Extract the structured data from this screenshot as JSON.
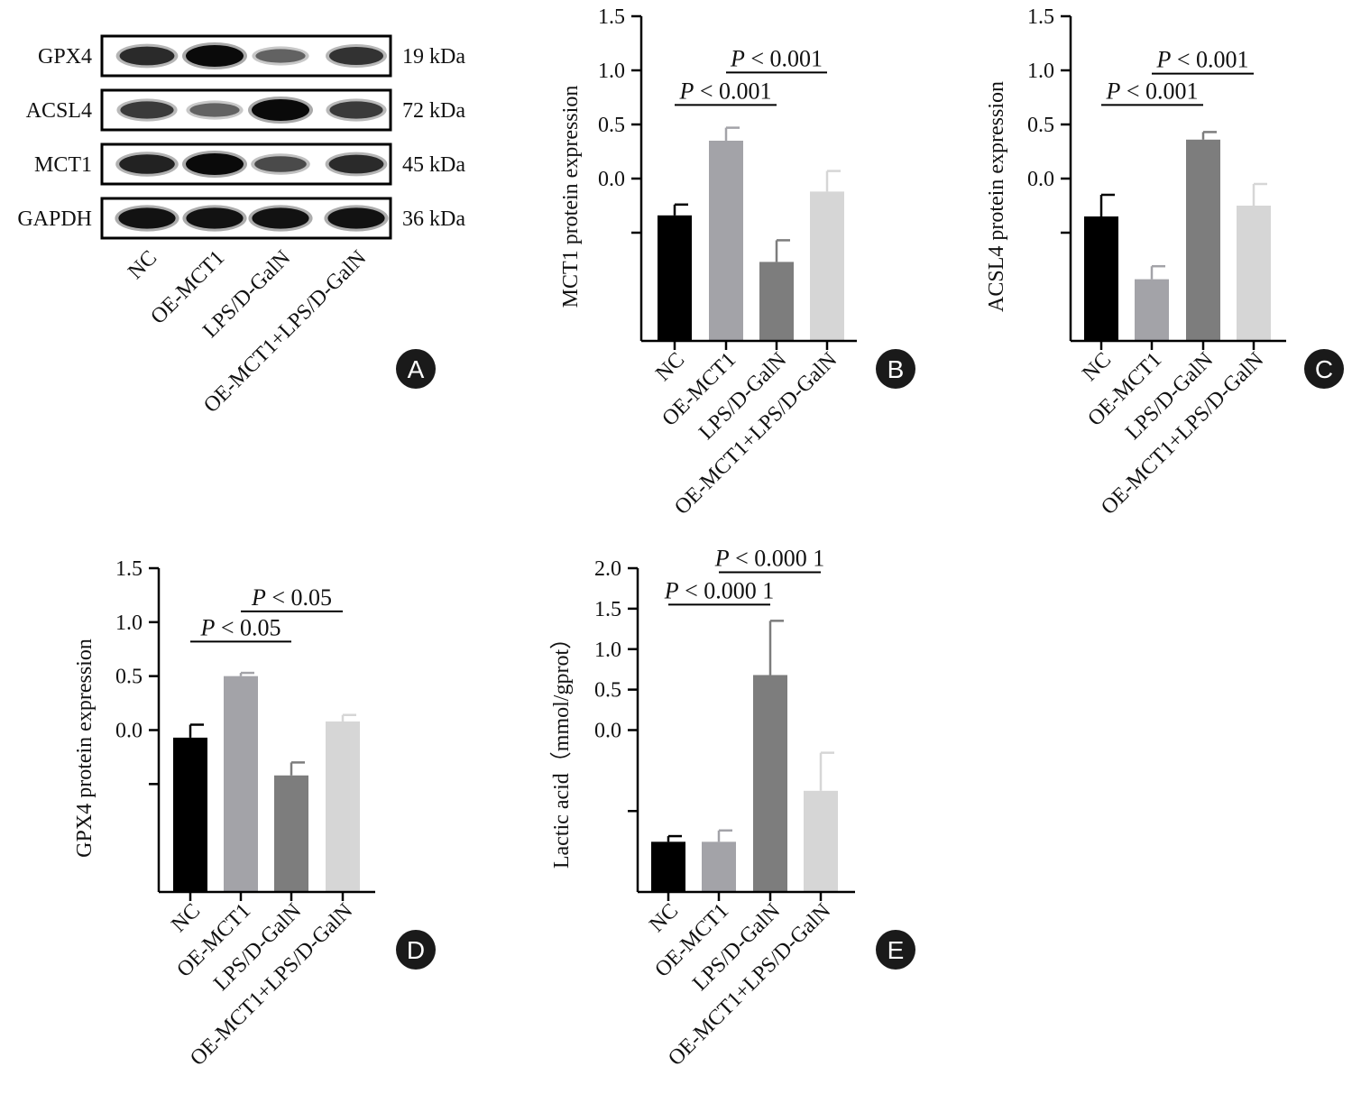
{
  "western_blot": {
    "panel_letter": "A",
    "proteins": [
      {
        "name": "GPX4",
        "size": "19 kDa",
        "intensities": [
          0.8,
          1.0,
          0.45,
          0.75
        ]
      },
      {
        "name": "ACSL4",
        "size": "72 kDa",
        "intensities": [
          0.7,
          0.45,
          1.0,
          0.7
        ]
      },
      {
        "name": "MCT1",
        "size": "45 kDa",
        "intensities": [
          0.85,
          1.0,
          0.6,
          0.8
        ]
      },
      {
        "name": "GAPDH",
        "size": "36 kDa",
        "intensities": [
          0.95,
          0.95,
          0.95,
          0.95
        ]
      }
    ],
    "lanes": [
      "NC",
      "OE-MCT1",
      "LPS/D-GalN",
      "OE-MCT1+LPS/D-GalN"
    ]
  },
  "chart_data": [
    {
      "panel": "B",
      "type": "bar",
      "ylabel": "MCT1 protein expression",
      "categories": [
        "NC",
        "OE-MCT1",
        "LPS/D-GalN",
        "OE-MCT1+LPS/D-GalN"
      ],
      "values": [
        -0.34,
        0.35,
        -0.77,
        -0.12
      ],
      "errors": [
        0.1,
        0.12,
        0.2,
        0.19
      ],
      "colors": [
        "#000000",
        "#a3a3a8",
        "#7d7d7d",
        "#d6d6d6"
      ],
      "ylim": [
        -1.5,
        1.5
      ],
      "yticks": [
        1.5,
        1.0,
        0.5,
        0.0,
        -0.5
      ],
      "ytick_labels": [
        "1.5",
        "1.0",
        "0.5",
        "0.0",
        ""
      ],
      "annotations": [
        {
          "text": "P < 0.001",
          "from": 0,
          "to": 2,
          "y": 0.68
        },
        {
          "text": "P < 0.001",
          "from": 1,
          "to": 3,
          "y": 0.98
        }
      ]
    },
    {
      "panel": "C",
      "type": "bar",
      "ylabel": "ACSL4 protein expression",
      "categories": [
        "NC",
        "OE-MCT1",
        "LPS/D-GalN",
        "OE-MCT1+LPS/D-GalN"
      ],
      "values": [
        -0.35,
        -0.93,
        0.36,
        -0.25
      ],
      "errors": [
        0.2,
        0.12,
        0.07,
        0.2
      ],
      "colors": [
        "#000000",
        "#a3a3a8",
        "#7d7d7d",
        "#d6d6d6"
      ],
      "ylim": [
        -1.5,
        1.5
      ],
      "yticks": [
        1.5,
        1.0,
        0.5,
        0.0,
        -0.5
      ],
      "ytick_labels": [
        "1.5",
        "1.0",
        "0.5",
        "0.0",
        ""
      ],
      "annotations": [
        {
          "text": "P < 0.001",
          "from": 0,
          "to": 2,
          "y": 0.68
        },
        {
          "text": "P < 0.001",
          "from": 1,
          "to": 3,
          "y": 0.97
        }
      ]
    },
    {
      "panel": "D",
      "type": "bar",
      "ylabel": "GPX4 protein expression",
      "categories": [
        "NC",
        "OE-MCT1",
        "LPS/D-GalN",
        "OE-MCT1+LPS/D-GalN"
      ],
      "values": [
        -0.07,
        0.5,
        -0.42,
        0.08
      ],
      "errors": [
        0.12,
        0.03,
        0.12,
        0.06
      ],
      "colors": [
        "#000000",
        "#a3a3a8",
        "#7d7d7d",
        "#d6d6d6"
      ],
      "ylim": [
        -1.5,
        1.5
      ],
      "yticks": [
        1.5,
        1.0,
        0.5,
        0.0,
        -0.5
      ],
      "ytick_labels": [
        "1.5",
        "1.0",
        "0.5",
        "0.0",
        ""
      ],
      "annotations": [
        {
          "text": "P < 0.05",
          "from": 0,
          "to": 2,
          "y": 0.82
        },
        {
          "text": "P < 0.05",
          "from": 1,
          "to": 3,
          "y": 1.1
        }
      ]
    },
    {
      "panel": "E",
      "type": "bar",
      "ylabel": "Lactic acid（mmol/gprot）",
      "categories": [
        "NC",
        "OE-MCT1",
        "LPS/D-GalN",
        "OE-MCT1+LPS/D-GalN"
      ],
      "values": [
        -1.38,
        -1.38,
        0.68,
        -0.75
      ],
      "errors": [
        0.07,
        0.14,
        0.67,
        0.47
      ],
      "colors": [
        "#000000",
        "#a3a3a8",
        "#7d7d7d",
        "#d6d6d6"
      ],
      "ylim": [
        -2.0,
        2.0
      ],
      "yticks": [
        2.0,
        1.5,
        1.0,
        0.5,
        0.0,
        -1.0
      ],
      "ytick_labels": [
        "2.0",
        "1.5",
        "1.0",
        "0.5",
        "0.0",
        ""
      ],
      "annotations": [
        {
          "text": "P < 0.000 1",
          "from": 0,
          "to": 2,
          "y": 1.55
        },
        {
          "text": "P < 0.000 1",
          "from": 1,
          "to": 3,
          "y": 1.95
        }
      ]
    }
  ]
}
